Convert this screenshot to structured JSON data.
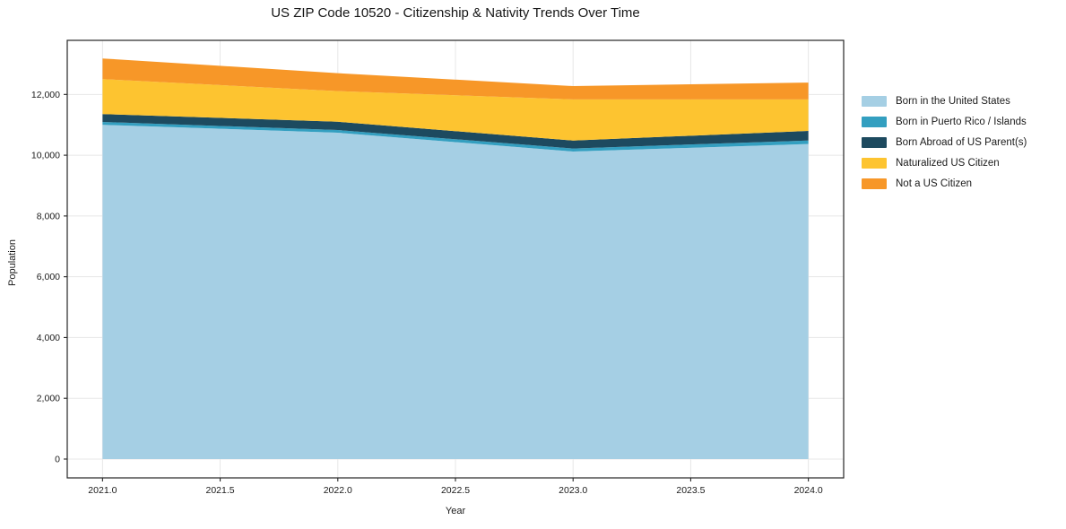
{
  "title": "US ZIP Code 10520 - Citizenship & Nativity Trends Over Time",
  "xlabel": "Year",
  "ylabel": "Population",
  "chart_data": {
    "type": "area",
    "stacked": true,
    "title": "US ZIP Code 10520 - Citizenship & Nativity Trends Over Time",
    "xlabel": "Year",
    "ylabel": "Population",
    "x": [
      2021,
      2022,
      2023,
      2024
    ],
    "series": [
      {
        "name": "Born in the United States",
        "color": "#a5cfe4",
        "values": [
          11000,
          10740,
          10120,
          10370
        ]
      },
      {
        "name": "Born in Puerto Rico / Islands",
        "color": "#339fc0",
        "values": [
          95,
          90,
          100,
          115
        ]
      },
      {
        "name": "Born Abroad of US Parent(s)",
        "color": "#1d4a5f",
        "values": [
          260,
          270,
          265,
          315
        ]
      },
      {
        "name": "Naturalized US Citizen",
        "color": "#fdc430",
        "values": [
          1150,
          1010,
          1350,
          1035
        ]
      },
      {
        "name": "Not a US Citizen",
        "color": "#f79728",
        "values": [
          680,
          590,
          440,
          555
        ]
      }
    ],
    "xlim": [
      2020.85,
      2024.15
    ],
    "ylim": [
      -620,
      13780
    ],
    "xticks": [
      2021.0,
      2021.5,
      2022.0,
      2022.5,
      2023.0,
      2023.5,
      2024.0
    ],
    "xtick_labels": [
      "2021.0",
      "2021.5",
      "2022.0",
      "2022.5",
      "2023.0",
      "2023.5",
      "2024.0"
    ],
    "yticks": [
      0,
      2000,
      4000,
      6000,
      8000,
      10000,
      12000
    ],
    "ytick_labels": [
      "0",
      "2,000",
      "4,000",
      "6,000",
      "8,000",
      "10,000",
      "12,000"
    ],
    "grid": true,
    "legend_position": "right",
    "grid_color": "#e7e7e7",
    "spine_color": "#262626",
    "tick_label_color": "#1a1a1a"
  }
}
